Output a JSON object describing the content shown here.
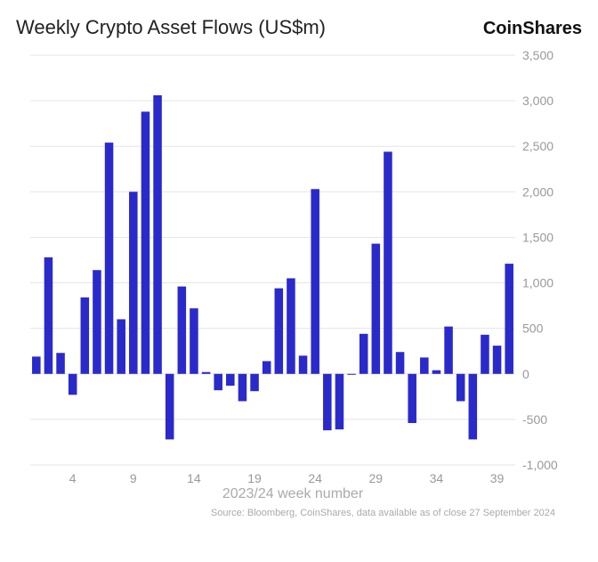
{
  "title": "Weekly Crypto Asset Flows (US$m)",
  "brand": "CoinShares",
  "source_line": "Source: Bloomberg, CoinShares, data available as of close 27 September 2024",
  "chart": {
    "type": "bar",
    "x_label": "2023/24 week number",
    "x_ticks": [
      4,
      9,
      14,
      19,
      24,
      29,
      34,
      39
    ],
    "y_ticks": [
      -1000,
      -500,
      0,
      500,
      1000,
      1500,
      2000,
      2500,
      3000,
      3500
    ],
    "ylim_min": -1000,
    "ylim_max": 3500,
    "x_min": 1,
    "x_max": 39,
    "bar_color": "#2a2acb",
    "background_color": "#ffffff",
    "grid_color": "#e5e5e5",
    "bar_width_ratio": 0.7,
    "tick_fontsize": 14,
    "tick_color": "#999999",
    "values": [
      190,
      1280,
      230,
      -230,
      840,
      1140,
      2540,
      600,
      2000,
      2880,
      3060,
      -720,
      960,
      720,
      20,
      -180,
      -130,
      -300,
      -190,
      140,
      940,
      1050,
      200,
      2030,
      -620,
      -610,
      -10,
      440,
      1430,
      2440,
      240,
      -540,
      180,
      40,
      520,
      -300,
      -720,
      430,
      310,
      1210
    ]
  }
}
